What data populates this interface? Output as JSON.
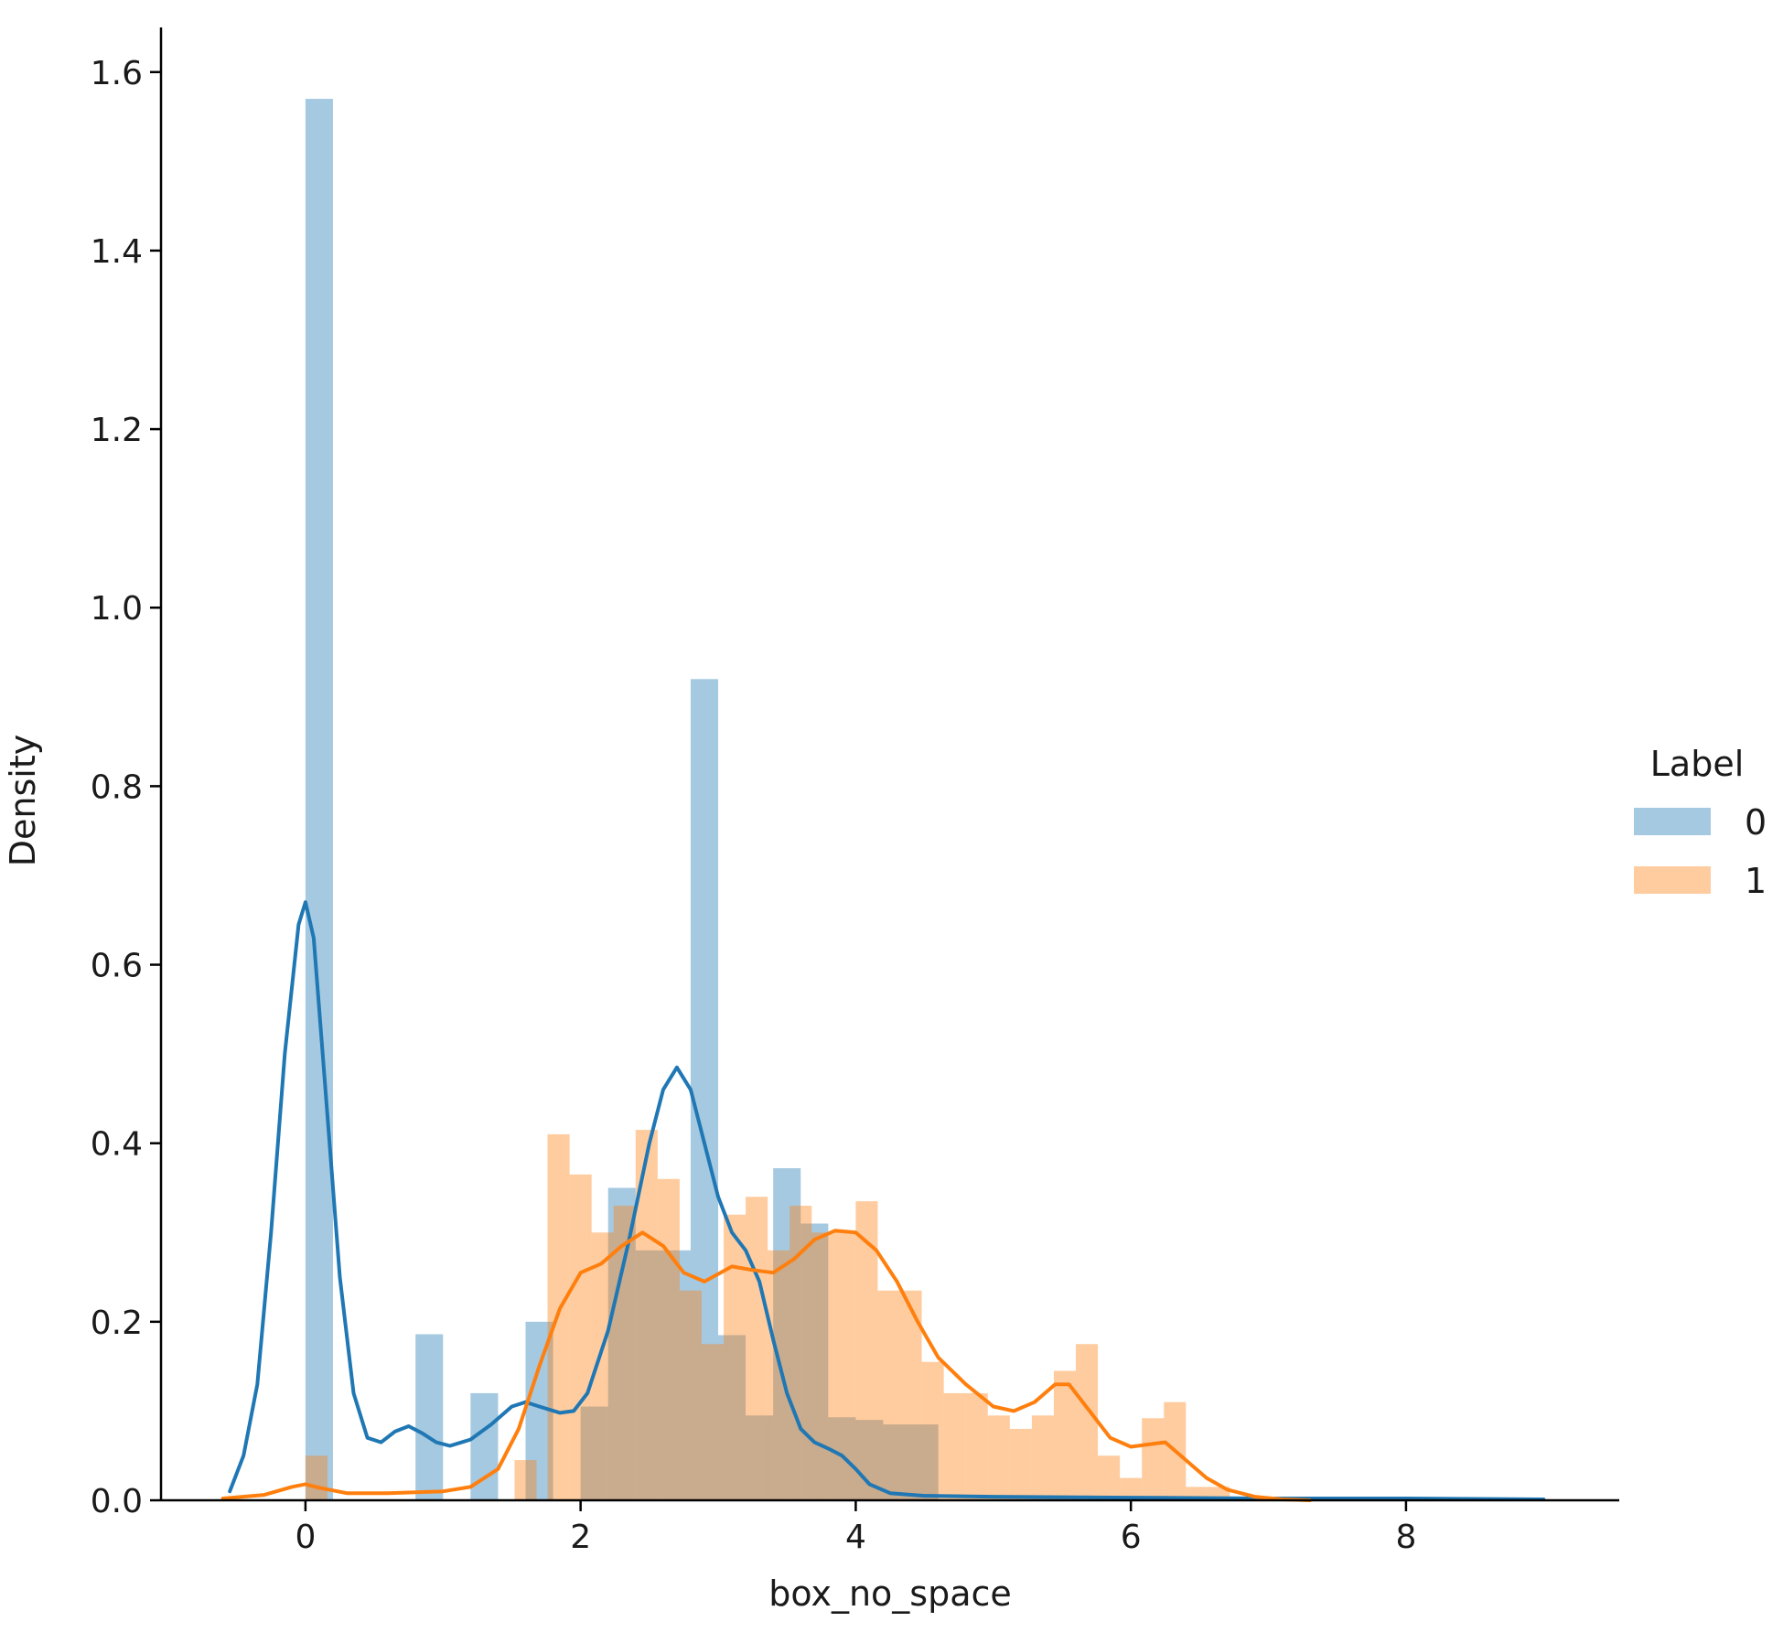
{
  "colors": {
    "series0_fill": "#1f77b4",
    "series1_fill": "#ff7f0e",
    "axis": "#000000",
    "background": "#ffffff"
  },
  "chart_data": {
    "type": "histogram",
    "xlabel": "box_no_space",
    "ylabel": "Density",
    "xlim": [
      -1.05,
      9.55
    ],
    "ylim": [
      0,
      1.65
    ],
    "x_ticks": [
      0,
      2,
      4,
      6,
      8
    ],
    "y_ticks": [
      0.0,
      0.2,
      0.4,
      0.6,
      0.8,
      1.0,
      1.2,
      1.4,
      1.6
    ],
    "y_tick_labels": [
      "0.0",
      "0.2",
      "0.4",
      "0.6",
      "0.8",
      "1.0",
      "1.2",
      "1.4",
      "1.6"
    ],
    "grid": false,
    "legend": {
      "title": "Label",
      "placement": "right",
      "entries": [
        "0",
        "1"
      ]
    },
    "series": [
      {
        "name": "0",
        "bin_width": 0.2,
        "bins": [
          [
            0.0,
            1.57
          ],
          [
            0.8,
            0.186
          ],
          [
            1.2,
            0.12
          ],
          [
            1.6,
            0.2
          ],
          [
            2.0,
            0.105
          ],
          [
            2.2,
            0.35
          ],
          [
            2.4,
            0.28
          ],
          [
            2.6,
            0.28
          ],
          [
            2.8,
            0.92
          ],
          [
            3.0,
            0.185
          ],
          [
            3.2,
            0.095
          ],
          [
            3.4,
            0.372
          ],
          [
            3.6,
            0.31
          ],
          [
            3.8,
            0.093
          ],
          [
            4.0,
            0.09
          ],
          [
            4.2,
            0.085
          ],
          [
            4.4,
            0.085
          ]
        ],
        "kde": [
          [
            -0.55,
            0.01
          ],
          [
            -0.45,
            0.05
          ],
          [
            -0.35,
            0.13
          ],
          [
            -0.25,
            0.3
          ],
          [
            -0.15,
            0.5
          ],
          [
            -0.05,
            0.645
          ],
          [
            0.0,
            0.67
          ],
          [
            0.06,
            0.63
          ],
          [
            0.15,
            0.45
          ],
          [
            0.25,
            0.25
          ],
          [
            0.35,
            0.12
          ],
          [
            0.45,
            0.07
          ],
          [
            0.55,
            0.065
          ],
          [
            0.65,
            0.077
          ],
          [
            0.75,
            0.083
          ],
          [
            0.85,
            0.075
          ],
          [
            0.95,
            0.065
          ],
          [
            1.05,
            0.061
          ],
          [
            1.2,
            0.068
          ],
          [
            1.35,
            0.085
          ],
          [
            1.5,
            0.105
          ],
          [
            1.6,
            0.11
          ],
          [
            1.7,
            0.105
          ],
          [
            1.85,
            0.098
          ],
          [
            1.95,
            0.1
          ],
          [
            2.05,
            0.12
          ],
          [
            2.2,
            0.19
          ],
          [
            2.35,
            0.29
          ],
          [
            2.5,
            0.4
          ],
          [
            2.6,
            0.46
          ],
          [
            2.7,
            0.485
          ],
          [
            2.8,
            0.46
          ],
          [
            2.9,
            0.4
          ],
          [
            3.0,
            0.34
          ],
          [
            3.1,
            0.3
          ],
          [
            3.2,
            0.28
          ],
          [
            3.3,
            0.245
          ],
          [
            3.4,
            0.18
          ],
          [
            3.5,
            0.12
          ],
          [
            3.6,
            0.08
          ],
          [
            3.7,
            0.065
          ],
          [
            3.8,
            0.058
          ],
          [
            3.9,
            0.05
          ],
          [
            4.0,
            0.035
          ],
          [
            4.1,
            0.018
          ],
          [
            4.25,
            0.008
          ],
          [
            4.5,
            0.005
          ],
          [
            5.0,
            0.004
          ],
          [
            6.0,
            0.003
          ],
          [
            7.0,
            0.002
          ],
          [
            8.0,
            0.002
          ],
          [
            9.0,
            0.001
          ]
        ]
      },
      {
        "name": "1",
        "bin_width": 0.16,
        "bins": [
          [
            0.0,
            0.05
          ],
          [
            1.52,
            0.045
          ],
          [
            1.76,
            0.41
          ],
          [
            1.92,
            0.365
          ],
          [
            2.08,
            0.3
          ],
          [
            2.24,
            0.33
          ],
          [
            2.4,
            0.415
          ],
          [
            2.56,
            0.36
          ],
          [
            2.72,
            0.235
          ],
          [
            2.88,
            0.175
          ],
          [
            3.04,
            0.32
          ],
          [
            3.2,
            0.34
          ],
          [
            3.36,
            0.28
          ],
          [
            3.52,
            0.33
          ],
          [
            3.68,
            0.3
          ],
          [
            3.84,
            0.3
          ],
          [
            4.0,
            0.335
          ],
          [
            4.16,
            0.235
          ],
          [
            4.32,
            0.235
          ],
          [
            4.48,
            0.155
          ],
          [
            4.64,
            0.12
          ],
          [
            4.8,
            0.12
          ],
          [
            4.96,
            0.095
          ],
          [
            5.12,
            0.08
          ],
          [
            5.28,
            0.095
          ],
          [
            5.44,
            0.145
          ],
          [
            5.6,
            0.175
          ],
          [
            5.76,
            0.05
          ],
          [
            5.92,
            0.025
          ],
          [
            6.08,
            0.092
          ],
          [
            6.24,
            0.11
          ],
          [
            6.4,
            0.015
          ],
          [
            6.56,
            0.015
          ]
        ],
        "kde": [
          [
            -0.6,
            0.002
          ],
          [
            -0.3,
            0.006
          ],
          [
            -0.1,
            0.015
          ],
          [
            0.0,
            0.018
          ],
          [
            0.1,
            0.014
          ],
          [
            0.3,
            0.008
          ],
          [
            0.6,
            0.008
          ],
          [
            1.0,
            0.01
          ],
          [
            1.2,
            0.015
          ],
          [
            1.4,
            0.035
          ],
          [
            1.55,
            0.08
          ],
          [
            1.7,
            0.15
          ],
          [
            1.85,
            0.215
          ],
          [
            2.0,
            0.255
          ],
          [
            2.15,
            0.265
          ],
          [
            2.3,
            0.285
          ],
          [
            2.45,
            0.3
          ],
          [
            2.6,
            0.285
          ],
          [
            2.75,
            0.255
          ],
          [
            2.9,
            0.245
          ],
          [
            3.1,
            0.262
          ],
          [
            3.25,
            0.258
          ],
          [
            3.4,
            0.255
          ],
          [
            3.55,
            0.27
          ],
          [
            3.7,
            0.292
          ],
          [
            3.85,
            0.302
          ],
          [
            4.0,
            0.3
          ],
          [
            4.15,
            0.28
          ],
          [
            4.3,
            0.245
          ],
          [
            4.45,
            0.2
          ],
          [
            4.6,
            0.16
          ],
          [
            4.8,
            0.13
          ],
          [
            5.0,
            0.105
          ],
          [
            5.15,
            0.1
          ],
          [
            5.3,
            0.11
          ],
          [
            5.45,
            0.13
          ],
          [
            5.55,
            0.13
          ],
          [
            5.7,
            0.1
          ],
          [
            5.85,
            0.07
          ],
          [
            6.0,
            0.06
          ],
          [
            6.15,
            0.063
          ],
          [
            6.25,
            0.065
          ],
          [
            6.4,
            0.045
          ],
          [
            6.55,
            0.025
          ],
          [
            6.7,
            0.012
          ],
          [
            6.9,
            0.004
          ],
          [
            7.1,
            0.001
          ],
          [
            7.3,
            0.0
          ]
        ]
      }
    ]
  }
}
